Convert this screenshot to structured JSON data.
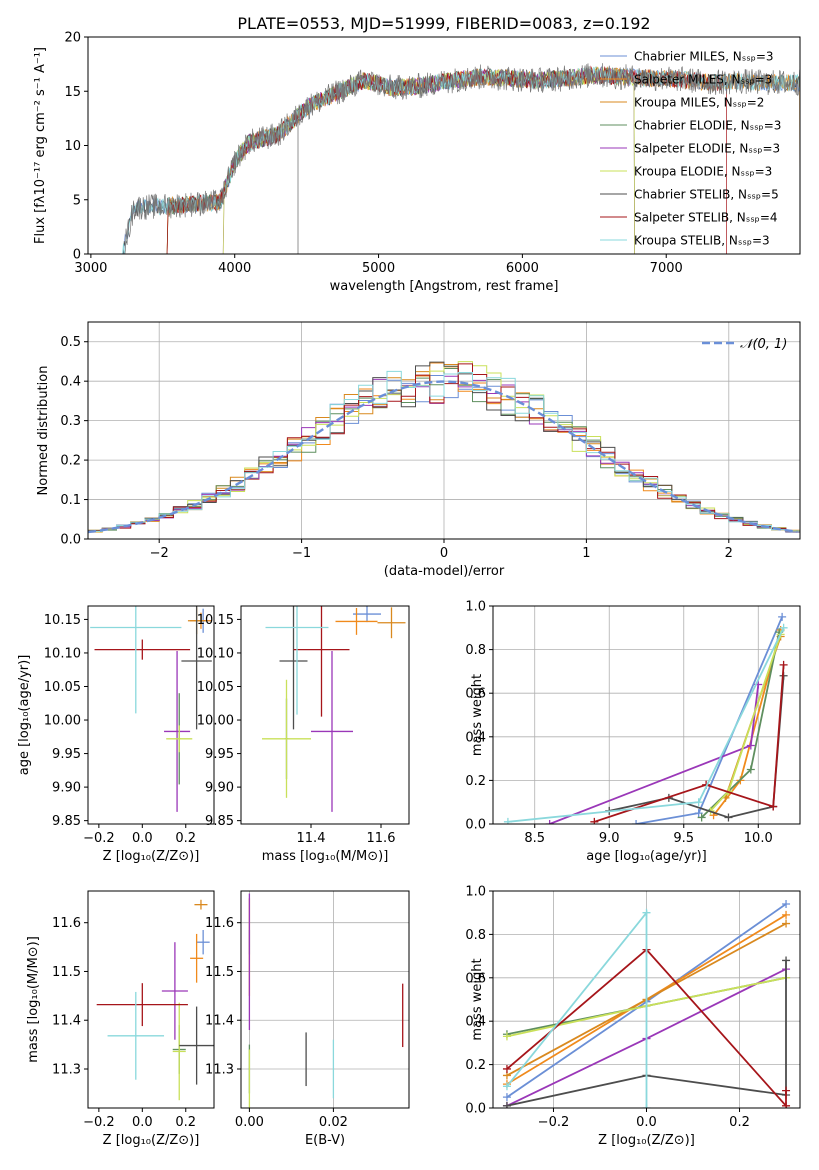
{
  "title": "PLATE=0553, MJD=51999, FIBERID=0083, z=0.192",
  "colors": [
    "#6b8fd6",
    "#f08a1c",
    "#d9891f",
    "#5f8f5f",
    "#9a37b8",
    "#c9e05a",
    "#4d4d4d",
    "#a6151a",
    "#8ad8dc"
  ],
  "chart_data": [
    {
      "type": "line",
      "name": "spectrum",
      "xlabel": "wavelength [Angstrom, rest frame]",
      "ylabel": "Flux [fλ10⁻¹⁷ erg cm⁻² s⁻¹ A⁻¹]",
      "xlim": [
        2980,
        7930
      ],
      "ylim": [
        0,
        20
      ],
      "xticks": [
        "3000",
        "4000",
        "5000",
        "6000",
        "7000"
      ],
      "yticks": [
        "0",
        "5",
        "10",
        "15",
        "20"
      ],
      "grid": false,
      "legend_position": "right",
      "legend": [
        "Chabrier MILES, Nₛₛₚ=3",
        "Salpeter MILES, Nₛₛₚ=3",
        "Kroupa MILES, Nₛₛₚ=2",
        "Chabrier ELODIE, Nₛₛₚ=3",
        "Salpeter ELODIE, Nₛₛₚ=3",
        "Kroupa ELODIE, Nₛₛₚ=3",
        "Chabrier STELIB, Nₛₛₚ=5",
        "Salpeter STELIB, Nₛₛₚ=4",
        "Kroupa STELIB, Nₛₛₚ=3"
      ],
      "envelope": {
        "x": [
          3220,
          3300,
          3500,
          3700,
          3900,
          4000,
          4100,
          4300,
          4500,
          4700,
          4900,
          5100,
          5300,
          5500,
          5700,
          5900,
          6100,
          6300,
          6500,
          6700,
          6900,
          7100,
          7300,
          7500,
          7700,
          7930
        ],
        "y": [
          0,
          4.3,
          4.4,
          4.6,
          4.8,
          8.5,
          10.3,
          11.0,
          13.5,
          14.8,
          16.0,
          15.3,
          15.5,
          16.0,
          16.3,
          16.2,
          16.0,
          16.2,
          16.5,
          16.3,
          16.2,
          16.1,
          15.8,
          15.9,
          15.8,
          15.8
        ]
      },
      "series_starts": [
        3220,
        3530,
        3530,
        3530,
        3920,
        3920,
        3220,
        3530,
        3220
      ],
      "series_ends": [
        7930,
        7930,
        7930,
        6780,
        6780,
        6780,
        7930,
        7420,
        7930
      ],
      "spike_x": [
        4440
      ]
    },
    {
      "type": "histogram",
      "name": "residuals",
      "xlabel": "(data-model)/error",
      "ylabel": "Normed distribution",
      "xlim": [
        -2.5,
        2.5
      ],
      "ylim": [
        0,
        0.55
      ],
      "xticks": [
        "−2",
        "−1",
        "0",
        "1",
        "2"
      ],
      "yticks": [
        "0.0",
        "0.1",
        "0.2",
        "0.3",
        "0.4",
        "0.5"
      ],
      "grid": true,
      "legend_position": "top-right",
      "legend": [
        "𝒩(0, 1)"
      ],
      "bin_width": 0.1,
      "reference": "normal"
    },
    {
      "type": "scatter",
      "name": "age-vs-Z",
      "xlabel": "Z [log₁₀(Z/Z⊙)]",
      "ylabel": "age  [log₁₀(age/yr)]",
      "xlim": [
        -0.25,
        0.33
      ],
      "ylim": [
        9.845,
        10.17
      ],
      "xticks": [
        "−0.2",
        "0.0",
        "0.2"
      ],
      "yticks": [
        "9.85",
        "9.90",
        "9.95",
        "10.00",
        "10.05",
        "10.10",
        "10.15"
      ],
      "grid": false,
      "points": [
        {
          "x": 0.28,
          "y": 10.148,
          "xerr": 0.04,
          "yerr": 0.018
        },
        {
          "x": 0.27,
          "y": 10.148,
          "xerr": 0.05,
          "yerr": 0.012
        },
        {
          "x": 0.25,
          "y": 10.148,
          "xerr": 0.04,
          "yerr": 0.02
        },
        {
          "x": 0.17,
          "y": 9.972,
          "xerr": 0.005,
          "yerr": 0.068
        },
        {
          "x": 0.16,
          "y": 9.983,
          "xerr": 0.06,
          "yerr": 0.12
        },
        {
          "x": 0.17,
          "y": 9.972,
          "xerr": 0.06,
          "yerr": 0.02
        },
        {
          "x": 0.25,
          "y": 10.088,
          "xerr": 0.07,
          "yerr": 0.102
        },
        {
          "x": 0.0,
          "y": 10.105,
          "xerr": 0.22,
          "yerr": 0.015
        },
        {
          "x": -0.03,
          "y": 10.138,
          "xerr": 0.21,
          "yerr": 0.128
        }
      ]
    },
    {
      "type": "scatter",
      "name": "age-vs-mass",
      "xlabel": "mass [log₁₀(M/M⊙)]",
      "ylabel": "",
      "xlim": [
        11.2,
        11.68
      ],
      "ylim": [
        9.845,
        10.17
      ],
      "xticks": [
        "11.4",
        "11.6"
      ],
      "yticks": [
        "9.85",
        "9.90",
        "9.95",
        "10.00",
        "10.05",
        "10.10",
        "10.15"
      ],
      "grid": false,
      "points": [
        {
          "x": 11.56,
          "y": 10.158,
          "xerr": 0.04,
          "yerr": 0.012
        },
        {
          "x": 11.53,
          "y": 10.147,
          "xerr": 0.06,
          "yerr": 0.02
        },
        {
          "x": 11.63,
          "y": 10.145,
          "xerr": 0.04,
          "yerr": 0.023
        },
        {
          "x": 11.33,
          "y": 9.972,
          "xerr": 0.005,
          "yerr": 0.06
        },
        {
          "x": 11.46,
          "y": 9.983,
          "xerr": 0.06,
          "yerr": 0.12
        },
        {
          "x": 11.33,
          "y": 9.972,
          "xerr": 0.07,
          "yerr": 0.088
        },
        {
          "x": 11.35,
          "y": 10.088,
          "xerr": 0.04,
          "yerr": 0.102
        },
        {
          "x": 11.43,
          "y": 10.105,
          "xerr": 0.08,
          "yerr": 0.1
        },
        {
          "x": 11.36,
          "y": 10.138,
          "xerr": 0.09,
          "yerr": 0.13
        }
      ]
    },
    {
      "type": "line",
      "name": "mass-weight-vs-age",
      "xlabel": "age  [log₁₀(age/yr)]",
      "ylabel": "mass weight",
      "xlim": [
        8.22,
        10.28
      ],
      "ylim": [
        0,
        1
      ],
      "xticks": [
        "8.5",
        "9.0",
        "9.5",
        "10.0"
      ],
      "yticks": [
        "0.0",
        "0.2",
        "0.4",
        "0.6",
        "0.8",
        "1.0"
      ],
      "grid": true,
      "series": [
        {
          "x": [
            9.18,
            9.6,
            10.16
          ],
          "y": [
            0.0,
            0.05,
            0.95
          ]
        },
        {
          "x": [
            9.7,
            9.88,
            10.15
          ],
          "y": [
            0.04,
            0.2,
            0.89
          ]
        },
        {
          "x": [
            9.78,
            10.15
          ],
          "y": [
            0.12,
            0.86
          ]
        },
        {
          "x": [
            9.62,
            9.95,
            10.14
          ],
          "y": [
            0.03,
            0.25,
            0.88
          ]
        },
        {
          "x": [
            8.6,
            9.95,
            10.0
          ],
          "y": [
            0.0,
            0.36,
            0.64
          ]
        },
        {
          "x": [
            9.68,
            9.8,
            10.15
          ],
          "y": [
            0.06,
            0.15,
            0.87
          ]
        },
        {
          "x": [
            9.0,
            9.4,
            9.8,
            10.1,
            10.17
          ],
          "y": [
            0.06,
            0.12,
            0.03,
            0.08,
            0.68
          ]
        },
        {
          "x": [
            8.9,
            9.65,
            10.1,
            10.17
          ],
          "y": [
            0.01,
            0.18,
            0.08,
            0.73
          ]
        },
        {
          "x": [
            8.32,
            9.6,
            10.17
          ],
          "y": [
            0.01,
            0.1,
            0.9
          ]
        }
      ]
    },
    {
      "type": "scatter",
      "name": "mass-vs-Z",
      "xlabel": "Z [log₁₀(Z/Z⊙)]",
      "ylabel": "mass [log₁₀(M/M⊙)]",
      "xlim": [
        -0.25,
        0.33
      ],
      "ylim": [
        11.22,
        11.665
      ],
      "xticks": [
        "−0.2",
        "0.0",
        "0.2"
      ],
      "yticks": [
        "11.3",
        "11.4",
        "11.5",
        "11.6"
      ],
      "grid": false,
      "points": [
        {
          "x": 0.28,
          "y": 11.56,
          "xerr": 0.03,
          "yerr": 0.025
        },
        {
          "x": 0.25,
          "y": 11.527,
          "xerr": 0.03,
          "yerr": 0.05
        },
        {
          "x": 0.27,
          "y": 11.637,
          "xerr": 0.03,
          "yerr": 0.01
        },
        {
          "x": 0.17,
          "y": 11.34,
          "xerr": 0.03,
          "yerr": 0.05
        },
        {
          "x": 0.15,
          "y": 11.46,
          "xerr": 0.06,
          "yerr": 0.1
        },
        {
          "x": 0.17,
          "y": 11.336,
          "xerr": 0.03,
          "yerr": 0.1
        },
        {
          "x": 0.25,
          "y": 11.348,
          "xerr": 0.08,
          "yerr": 0.08
        },
        {
          "x": 0.0,
          "y": 11.432,
          "xerr": 0.21,
          "yerr": 0.044
        },
        {
          "x": -0.03,
          "y": 11.368,
          "xerr": 0.13,
          "yerr": 0.09
        }
      ]
    },
    {
      "type": "scatter",
      "name": "mass-vs-ebv",
      "xlabel": "E(B-V)",
      "ylabel": "",
      "xlim": [
        -0.002,
        0.038
      ],
      "ylim": [
        11.22,
        11.665
      ],
      "xticks": [
        "0.00",
        "0.02"
      ],
      "yticks": [
        "11.3",
        "11.4",
        "11.5",
        "11.6"
      ],
      "grid": true,
      "points": [
        {
          "x": 0.0,
          "y": 11.56,
          "xerr": 0,
          "yerr": 0.025
        },
        {
          "x": 0.0,
          "y": 11.5,
          "xerr": 0,
          "yerr": 0.05
        },
        {
          "x": 0.0,
          "y": 11.6,
          "xerr": 0,
          "yerr": 0.05
        },
        {
          "x": 0.0,
          "y": 11.3,
          "xerr": 0,
          "yerr": 0.05
        },
        {
          "x": 0.0,
          "y": 11.52,
          "xerr": 0,
          "yerr": 0.14
        },
        {
          "x": 0.0,
          "y": 11.28,
          "xerr": 0,
          "yerr": 0.06
        },
        {
          "x": 0.0135,
          "y": 11.32,
          "xerr": 0,
          "yerr": 0.055
        },
        {
          "x": 0.0365,
          "y": 11.41,
          "xerr": 0,
          "yerr": 0.065
        },
        {
          "x": 0.02,
          "y": 11.3,
          "xerr": 0,
          "yerr": 0.06
        }
      ]
    },
    {
      "type": "line",
      "name": "mass-weight-vs-Z",
      "xlabel": "Z [log₁₀(Z/Z⊙)]",
      "ylabel": "mass weight",
      "xlim": [
        -0.33,
        0.33
      ],
      "ylim": [
        0,
        1
      ],
      "xticks": [
        "−0.2",
        "0.0",
        "0.2"
      ],
      "yticks": [
        "0.0",
        "0.2",
        "0.4",
        "0.6",
        "0.8",
        "1.0"
      ],
      "grid": true,
      "series": [
        {
          "x": [
            -0.3,
            0.0,
            0.3
          ],
          "y": [
            0.05,
            0.49,
            0.94
          ]
        },
        {
          "x": [
            -0.3,
            0.0,
            0.3
          ],
          "y": [
            0.11,
            0.5,
            0.89
          ]
        },
        {
          "x": [
            -0.3,
            0.0,
            0.3
          ],
          "y": [
            0.15,
            0.5,
            0.85
          ]
        },
        {
          "x": [
            -0.3,
            0.0,
            0.3
          ],
          "y": [
            0.34,
            0.47,
            0.6
          ]
        },
        {
          "x": [
            -0.3,
            0.0,
            0.3
          ],
          "y": [
            0.01,
            0.32,
            0.64
          ]
        },
        {
          "x": [
            -0.3,
            0.0,
            0.3
          ],
          "y": [
            0.33,
            0.47,
            0.6
          ]
        },
        {
          "x": [
            -0.3,
            0.0,
            0.3,
            0.3
          ],
          "y": [
            0.01,
            0.15,
            0.06,
            0.68
          ]
        },
        {
          "x": [
            -0.3,
            0.0,
            0.3,
            0.3
          ],
          "y": [
            0.18,
            0.73,
            0.01,
            0.08
          ]
        },
        {
          "x": [
            -0.3,
            0.0,
            0.0
          ],
          "y": [
            0.1,
            0.9,
            0.0
          ]
        }
      ]
    }
  ]
}
